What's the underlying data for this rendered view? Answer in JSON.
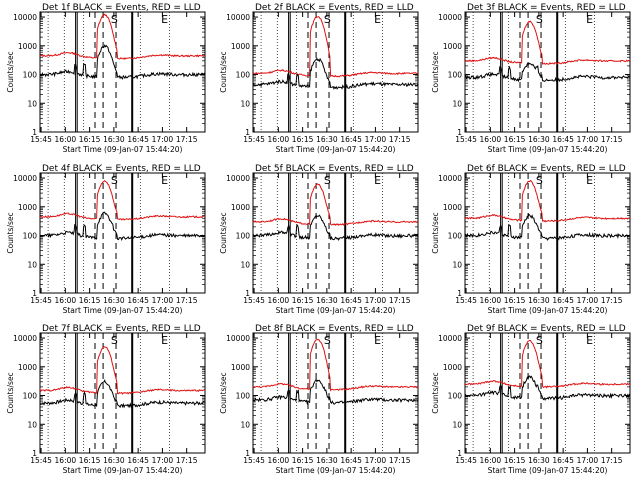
{
  "chart_data": [
    {
      "type": "line",
      "title": "Det 1f BLACK = Events, RED = LLD",
      "xlabel": "Start Time (09-Jan-07 15:44:20)",
      "ylabel": "Counts/sec",
      "events_level": 100,
      "lld_level": 450,
      "flare_peak_events": 1000,
      "flare_peak_lld": 12000
    },
    {
      "type": "line",
      "title": "Det 2f BLACK = Events, RED = LLD",
      "xlabel": "Start Time (09-Jan-07 15:44:20)",
      "ylabel": "Counts/sec",
      "events_level": 45,
      "lld_level": 110,
      "flare_peak_events": 350,
      "flare_peak_lld": 10500
    },
    {
      "type": "line",
      "title": "Det 3f BLACK = Events, RED = LLD",
      "xlabel": "Start Time (09-Jan-07 15:44:20)",
      "ylabel": "Counts/sec",
      "events_level": 80,
      "lld_level": 300,
      "flare_peak_events": 250,
      "flare_peak_lld": 7000
    },
    {
      "type": "line",
      "title": "Det 4f BLACK = Events, RED = LLD",
      "xlabel": "Start Time (09-Jan-07 15:44:20)",
      "ylabel": "Counts/sec",
      "events_level": 100,
      "lld_level": 450,
      "flare_peak_events": 600,
      "flare_peak_lld": 8000
    },
    {
      "type": "line",
      "title": "Det 5f BLACK = Events, RED = LLD",
      "xlabel": "Start Time (09-Jan-07 15:44:20)",
      "ylabel": "Counts/sec",
      "events_level": 100,
      "lld_level": 300,
      "flare_peak_events": 500,
      "flare_peak_lld": 6000
    },
    {
      "type": "line",
      "title": "Det 6f BLACK = Events, RED = LLD",
      "xlabel": "Start Time (09-Jan-07 15:44:20)",
      "ylabel": "Counts/sec",
      "events_level": 100,
      "lld_level": 400,
      "flare_peak_events": 500,
      "flare_peak_lld": 8000
    },
    {
      "type": "line",
      "title": "Det 7f BLACK = Events, RED = LLD",
      "xlabel": "Start Time (09-Jan-07 15:44:20)",
      "ylabel": "Counts/sec",
      "events_level": 55,
      "lld_level": 150,
      "flare_peak_events": 300,
      "flare_peak_lld": 5000
    },
    {
      "type": "line",
      "title": "Det 8f BLACK = Events, RED = LLD",
      "xlabel": "Start Time (09-Jan-07 15:44:20)",
      "ylabel": "Counts/sec",
      "events_level": 70,
      "lld_level": 200,
      "flare_peak_events": 350,
      "flare_peak_lld": 9000
    },
    {
      "type": "line",
      "title": "Det 9f BLACK = Events, RED = LLD",
      "xlabel": "Start Time (09-Jan-07 15:44:20)",
      "ylabel": "Counts/sec",
      "events_level": 100,
      "lld_level": 250,
      "flare_peak_events": 450,
      "flare_peak_lld": 8000
    }
  ],
  "shared_axes": {
    "y_scale": "log",
    "ylim": [
      1,
      15000
    ],
    "y_ticks": [
      "1",
      "10",
      "100",
      "1000",
      "10000"
    ],
    "x_ticks": [
      "15:45",
      "16:00",
      "16:15",
      "16:30",
      "16:45",
      "17:00",
      "17:15"
    ],
    "markers": [
      "S",
      "E"
    ]
  },
  "colors": {
    "events": "#000000",
    "lld": "#e01010",
    "background": "#ffffff",
    "axes": "#000000"
  }
}
